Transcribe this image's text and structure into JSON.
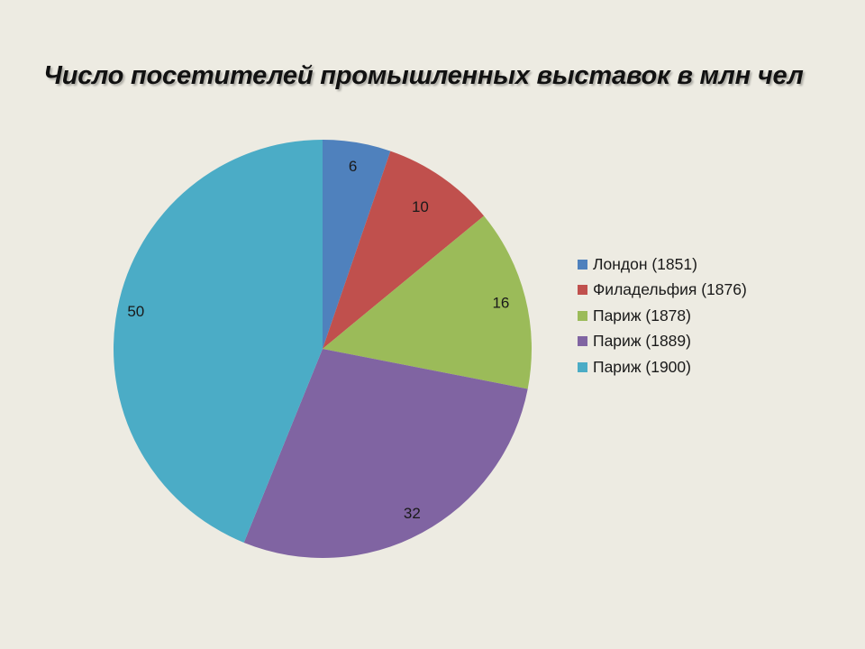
{
  "chart_data": {
    "type": "pie",
    "title": "Число посетителей промышленных выставок в млн чел",
    "categories": [
      "Лондон (1851)",
      "Филадельфия (1876)",
      "Париж (1878)",
      "Париж (1889)",
      "Париж (1900)"
    ],
    "values": [
      6,
      10,
      16,
      32,
      50
    ],
    "data_labels": [
      "6",
      "10",
      "16",
      "32",
      "50"
    ],
    "colors": [
      "#4F81BD",
      "#C0504D",
      "#9BBB59",
      "#8064A2",
      "#4BACC6"
    ],
    "legend_position": "right",
    "start_angle": "12 o'clock",
    "direction": "clockwise"
  }
}
